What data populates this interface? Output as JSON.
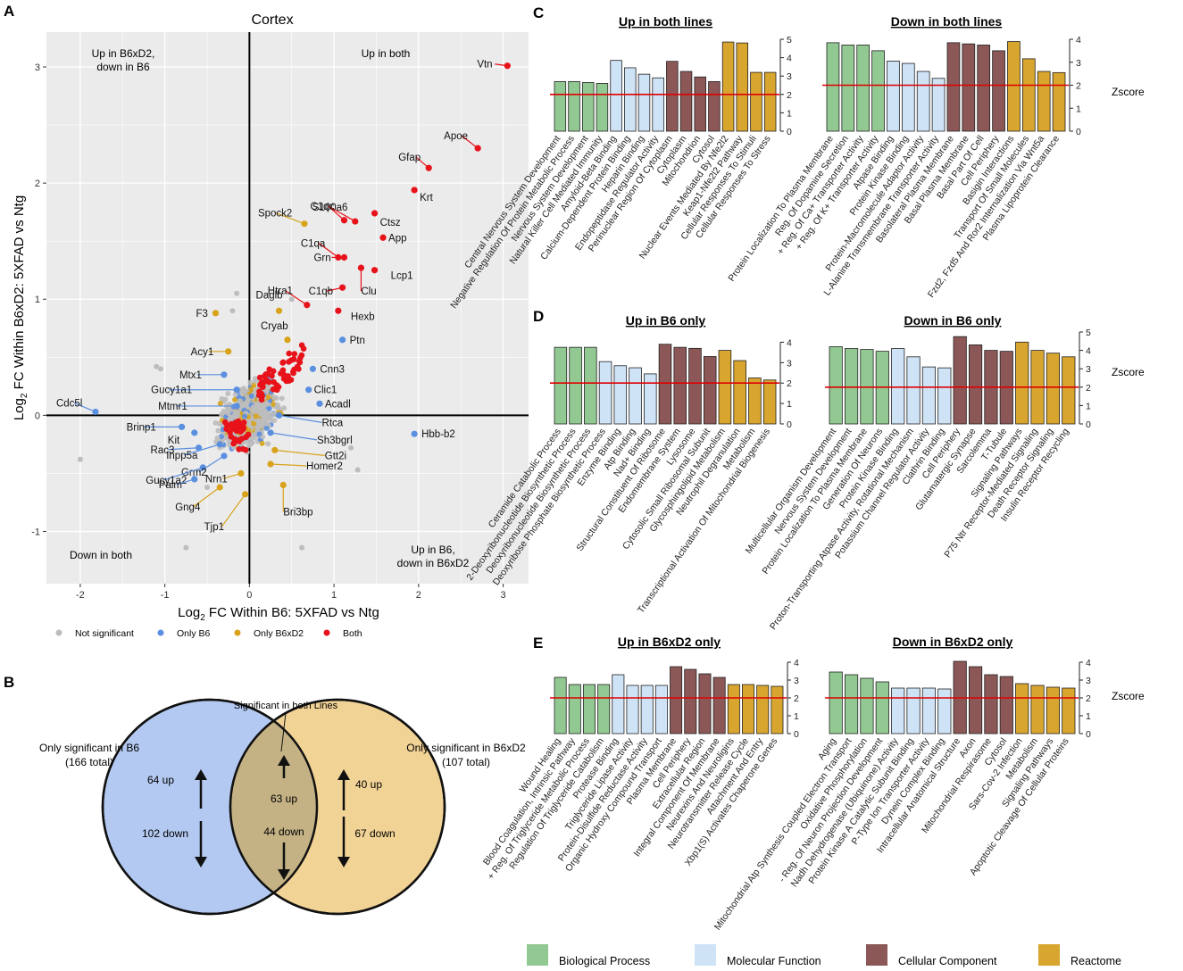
{
  "colors": {
    "not_significant": "#bdbdbd",
    "only_b6": "#5b8fe0",
    "only_b6xd2": "#d8a31a",
    "both": "#e8121a",
    "panel_bg": "#ebebeb",
    "bp": "#92c992",
    "mf": "#cfe3f7",
    "cc": "#8b5757",
    "re": "#d8a52e",
    "threshold": "#e00000",
    "venn_b6": "#b3c9f1",
    "venn_b6xd2": "#f2d396",
    "venn_overlap": "#c4b285"
  },
  "panels": {
    "a": "A",
    "b": "B",
    "c": "C",
    "d": "D",
    "e": "E"
  },
  "chart_data": [
    {
      "type": "scatter",
      "title": "Cortex",
      "xlabel_prefix": "Log",
      "xlabel_sub": "2",
      "xlabel_rest": " FC Within B6: 5XFAD vs Ntg",
      "ylabel_prefix": "Log",
      "ylabel_sub": "2",
      "ylabel_rest": " FC Within B6xD2: 5XFAD vs Ntg",
      "xlim": [
        -2.4,
        3.3
      ],
      "ylim": [
        -1.45,
        3.3
      ],
      "xticks": [
        -2,
        -1,
        0,
        1,
        2,
        3
      ],
      "yticks": [
        -1,
        0,
        1,
        2,
        3
      ],
      "quadrants": {
        "top_left": [
          "Up in B6xD2,",
          "down in B6"
        ],
        "top_right": [
          "Up in both"
        ],
        "bottom_left": [
          "Down in both"
        ],
        "bottom_right": [
          "Up in B6,",
          "down in B6xD2"
        ]
      },
      "legend": [
        {
          "key": "not_significant",
          "label": "Not significant"
        },
        {
          "key": "only_b6",
          "label": "Only B6"
        },
        {
          "key": "only_b6xd2",
          "label": "Only B6xD2"
        },
        {
          "key": "both",
          "label": "Both"
        }
      ],
      "labeled_points": [
        {
          "gene": "Vtn",
          "x": 3.05,
          "y": 3.01,
          "group": "both"
        },
        {
          "gene": "Apoe",
          "x": 2.7,
          "y": 2.3,
          "group": "both"
        },
        {
          "gene": "Gfap",
          "x": 2.12,
          "y": 2.13,
          "group": "both"
        },
        {
          "gene": "Krt",
          "x": 1.95,
          "y": 1.94,
          "group": "both"
        },
        {
          "gene": "S100a6",
          "x": 1.25,
          "y": 1.67,
          "group": "both"
        },
        {
          "gene": "Ctsz",
          "x": 1.48,
          "y": 1.74,
          "group": "both"
        },
        {
          "gene": "C1qc",
          "x": 1.12,
          "y": 1.68,
          "group": "both"
        },
        {
          "gene": "Spock2",
          "x": 0.65,
          "y": 1.65,
          "group": "only_b6xd2"
        },
        {
          "gene": "C1qa",
          "x": 1.05,
          "y": 1.36,
          "group": "both"
        },
        {
          "gene": "App",
          "x": 1.58,
          "y": 1.53,
          "group": "both"
        },
        {
          "gene": "Grn",
          "x": 1.12,
          "y": 1.36,
          "group": "both"
        },
        {
          "gene": "Lcp1",
          "x": 1.48,
          "y": 1.25,
          "group": "both"
        },
        {
          "gene": "C1qb",
          "x": 1.1,
          "y": 1.1,
          "group": "both"
        },
        {
          "gene": "Clu",
          "x": 1.32,
          "y": 1.27,
          "group": "both"
        },
        {
          "gene": "Htra1",
          "x": 0.68,
          "y": 0.95,
          "group": "both"
        },
        {
          "gene": "Daglb",
          "x": 0.35,
          "y": 0.9,
          "group": "only_b6xd2"
        },
        {
          "gene": "F3",
          "x": -0.4,
          "y": 0.88,
          "group": "only_b6xd2"
        },
        {
          "gene": "Hexb",
          "x": 1.05,
          "y": 0.9,
          "group": "both"
        },
        {
          "gene": "Cryab",
          "x": 0.45,
          "y": 0.65,
          "group": "only_b6xd2"
        },
        {
          "gene": "Ptn",
          "x": 1.1,
          "y": 0.65,
          "group": "only_b6"
        },
        {
          "gene": "Acy1",
          "x": -0.25,
          "y": 0.55,
          "group": "only_b6xd2"
        },
        {
          "gene": "Mtx1",
          "x": -0.3,
          "y": 0.35,
          "group": "only_b6"
        },
        {
          "gene": "Cnn3",
          "x": 0.75,
          "y": 0.4,
          "group": "only_b6"
        },
        {
          "gene": "Gucy1a1",
          "x": -0.15,
          "y": 0.22,
          "group": "only_b6"
        },
        {
          "gene": "Clic1",
          "x": 0.7,
          "y": 0.22,
          "group": "only_b6"
        },
        {
          "gene": "Acadl",
          "x": 0.83,
          "y": 0.1,
          "group": "only_b6"
        },
        {
          "gene": "Mtmr1",
          "x": -0.15,
          "y": 0.08,
          "group": "only_b6"
        },
        {
          "gene": "Cdc5l",
          "x": -1.82,
          "y": 0.03,
          "group": "only_b6"
        },
        {
          "gene": "Rtca",
          "x": 0.35,
          "y": 0.0,
          "group": "only_b6"
        },
        {
          "gene": "Brinp1",
          "x": -0.8,
          "y": -0.1,
          "group": "only_b6"
        },
        {
          "gene": "Kit",
          "x": -0.65,
          "y": -0.15,
          "group": "only_b6"
        },
        {
          "gene": "Sh3bgrl",
          "x": 0.25,
          "y": -0.15,
          "group": "only_b6"
        },
        {
          "gene": "Hbb-b2",
          "x": 1.95,
          "y": -0.16,
          "group": "only_b6"
        },
        {
          "gene": "Rac3",
          "x": -0.6,
          "y": -0.28,
          "group": "only_b6"
        },
        {
          "gene": "Inpp5a",
          "x": -0.35,
          "y": -0.25,
          "group": "only_b6"
        },
        {
          "gene": "Gtt2i",
          "x": 0.3,
          "y": -0.3,
          "group": "only_b6xd2"
        },
        {
          "gene": "Grm2",
          "x": -0.3,
          "y": -0.35,
          "group": "only_b6"
        },
        {
          "gene": "Homer2",
          "x": 0.25,
          "y": -0.42,
          "group": "only_b6xd2"
        },
        {
          "gene": "Gucy1a2",
          "x": -0.55,
          "y": -0.45,
          "group": "only_b6"
        },
        {
          "gene": "Palm",
          "x": -0.65,
          "y": -0.55,
          "group": "only_b6"
        },
        {
          "gene": "Nrn1",
          "x": -0.1,
          "y": -0.5,
          "group": "only_b6xd2"
        },
        {
          "gene": "Bri3bp",
          "x": 0.4,
          "y": -0.6,
          "group": "only_b6xd2"
        },
        {
          "gene": "Gng4",
          "x": -0.35,
          "y": -0.62,
          "group": "only_b6xd2"
        },
        {
          "gene": "Tjp1",
          "x": -0.05,
          "y": -0.68,
          "group": "only_b6xd2"
        }
      ]
    },
    {
      "type": "venn",
      "annotation": "Significant in both Lines",
      "left": {
        "title": "Only significant in B6",
        "total": "(166 total)",
        "up": "64 up",
        "down": "102 down"
      },
      "overlap": {
        "up": "63 up",
        "down": "44 down"
      },
      "right": {
        "title": "Only significant in B6xD2",
        "total": "(107 total)",
        "up": "40 up",
        "down": "67 down"
      }
    },
    {
      "type": "bar",
      "panel": "C",
      "ylabel": "Zscore",
      "threshold": 2,
      "charts": [
        {
          "title": "Up in both lines",
          "ymax": 5,
          "ticks": [
            0,
            1,
            2,
            3,
            4,
            5
          ],
          "values": [
            2.7,
            2.7,
            2.65,
            2.6,
            3.85,
            3.45,
            3.1,
            2.9,
            3.8,
            3.25,
            2.95,
            2.7,
            4.85,
            4.8,
            3.2,
            3.2
          ],
          "categories": [
            "bp",
            "bp",
            "bp",
            "bp",
            "mf",
            "mf",
            "mf",
            "mf",
            "cc",
            "cc",
            "cc",
            "cc",
            "re",
            "re",
            "re",
            "re"
          ],
          "labels": [
            "Central Nervous System Development",
            "Negative Regulation Of Protein Metabolic Process",
            "Nervous System Development",
            "Natural Killer Cell Mediated Immunity",
            "Amyloid-Beta Binding",
            "Calcium-Dependent Protein Binding",
            "Heparin Binding",
            "Endopeptidase Regulator Activity",
            "Perinuclear Region Of Cytoplasm",
            "Cytoplasm",
            "Mitochondrion",
            "Cytosol",
            "Nuclear Events Mediated By Nfe2l2",
            "Keap1-Nfe2l2 Pathway",
            "Cellular Responses To Stimuli",
            "Cellular Responses To Stress"
          ]
        },
        {
          "title": "Down in both lines",
          "ymax": 4,
          "ticks": [
            0,
            1,
            2,
            3,
            4
          ],
          "values": [
            3.85,
            3.75,
            3.75,
            3.5,
            3.05,
            2.95,
            2.6,
            2.3,
            3.85,
            3.8,
            3.75,
            3.5,
            3.9,
            3.15,
            2.6,
            2.55
          ],
          "categories": [
            "bp",
            "bp",
            "bp",
            "bp",
            "mf",
            "mf",
            "mf",
            "mf",
            "cc",
            "cc",
            "cc",
            "cc",
            "re",
            "re",
            "re",
            "re"
          ],
          "labels": [
            "Protein Localization To Plasma Membrane",
            "Reg. Of Dopamine Secretion",
            "+ Reg. Of Ca+ Transporter Activity",
            "+ Reg. Of K+ Transporter Activity",
            "Atpase Binding",
            "Protein Kinase Binding",
            "Protein-Macromolecule Adaptor Activity",
            "L-Alanine Transmembrane Transporter Activity",
            "Basolateral Plasma Membrane",
            "Basal Plasma Membrane",
            "Basal Part Of Cell",
            "Cell Periphery",
            "Basigin Interactions",
            "Transport Of Small Molecules",
            "Fzd2, Fzd5 And Ror2 Internalization Via Wnt5a",
            "Plasma Lipoprotein Clearance"
          ]
        }
      ]
    },
    {
      "type": "bar",
      "panel": "D",
      "ylabel": "Zscore",
      "threshold": 2,
      "charts": [
        {
          "title": "Up in B6 only",
          "ymax": 4.5,
          "ticks": [
            0,
            1,
            2,
            3,
            4
          ],
          "values": [
            3.75,
            3.75,
            3.75,
            3.05,
            2.85,
            2.75,
            2.45,
            3.9,
            3.75,
            3.7,
            3.3,
            3.6,
            3.1,
            2.25,
            2.15
          ],
          "categories": [
            "bp",
            "bp",
            "bp",
            "mf",
            "mf",
            "mf",
            "mf",
            "cc",
            "cc",
            "cc",
            "cc",
            "re",
            "re",
            "re",
            "re"
          ],
          "labels": [
            "Ceramide Catabolic Process",
            "2-Deoxyribonucleotide Biosynthetic Process",
            "Deoxyribonucleotide Biosynthetic Process",
            "Deoxyribose Phosphate Biosynthetic Process",
            "Enzyme Binding",
            "Atp Binding",
            "Nad+ Binding",
            "Structural Constituent Of Ribosome",
            "Endomembrane System",
            "Lysosome",
            "Cytosolic Small Ribosomal Subunit",
            "Glycosphingolipid Metabolism",
            "Neutrophil Degranulation",
            "Metabolism",
            "Transcriptional Activation Of Mitochondrial Biogenesis"
          ]
        },
        {
          "title": "Down in B6 only",
          "ymax": 5,
          "ticks": [
            0,
            1,
            2,
            3,
            4,
            5
          ],
          "values": [
            4.2,
            4.1,
            4.05,
            3.95,
            4.1,
            3.65,
            3.1,
            3.05,
            4.75,
            4.3,
            4.0,
            3.95,
            4.45,
            4.0,
            3.85,
            3.65
          ],
          "categories": [
            "bp",
            "bp",
            "bp",
            "bp",
            "mf",
            "mf",
            "mf",
            "mf",
            "cc",
            "cc",
            "cc",
            "cc",
            "re",
            "re",
            "re",
            "re"
          ],
          "labels": [
            "Multicellular Organism Development",
            "Nervous System Development",
            "Protein Localization To Plasma Membrane",
            "Generation Of Neurons",
            "Protein Kinase Binding",
            "Proton-Transporting Atpase Activity, Rotational Mechanism",
            "Potassium Channel Regulator Activity",
            "Clathrin Binding",
            "Cell Periphery",
            "Glutamatergic Synapse",
            "Sarcolemma",
            "T-Tubule",
            "Signaling Pathways",
            "P75 Ntr Receptor-Mediated Signaling",
            "Death Receptor Signaling",
            "Insulin Receptor Recycling"
          ]
        }
      ]
    },
    {
      "type": "bar",
      "panel": "E",
      "ylabel": "Zscore",
      "threshold": 2,
      "charts": [
        {
          "title": "Up in B6xD2 only",
          "ymax": 4,
          "ticks": [
            0,
            1,
            2,
            3,
            4
          ],
          "values": [
            3.15,
            2.75,
            2.75,
            2.75,
            3.3,
            2.7,
            2.7,
            2.7,
            3.75,
            3.6,
            3.35,
            3.15,
            2.75,
            2.75,
            2.7,
            2.65
          ],
          "categories": [
            "bp",
            "bp",
            "bp",
            "bp",
            "mf",
            "mf",
            "mf",
            "mf",
            "cc",
            "cc",
            "cc",
            "cc",
            "re",
            "re",
            "re",
            "re"
          ],
          "labels": [
            "Wound Healing",
            "Blood Coagulation, Intrinsic Pathway",
            "+ Reg. Of Triglyceride Metabolic Process",
            "Regulation Of Triglyceride Catabolism",
            "Protease Binding",
            "Triglyceride Lipase Activity",
            "Protein-Disulfide Reductase Activity",
            "Organic Hydroxy Compound Transport",
            "Plasma Membrane",
            "Cell Periphery",
            "Extracellular Region",
            "Integral Component Of Membrane",
            "Neurexins And Neuroligins",
            "Neurotransmitter Release Cycle",
            "Attachment And Entry",
            "Xbp1(S) Activates Chaperone Genes"
          ]
        },
        {
          "title": "Down in B6xD2 only",
          "ymax": 4,
          "ticks": [
            0,
            1,
            2,
            3,
            4
          ],
          "values": [
            3.45,
            3.3,
            3.1,
            2.9,
            2.55,
            2.55,
            2.55,
            2.5,
            4.05,
            3.75,
            3.3,
            3.2,
            2.8,
            2.7,
            2.6,
            2.55
          ],
          "categories": [
            "bp",
            "bp",
            "bp",
            "bp",
            "mf",
            "mf",
            "mf",
            "mf",
            "cc",
            "cc",
            "cc",
            "cc",
            "re",
            "re",
            "re",
            "re"
          ],
          "labels": [
            "Aging",
            "Mitochondrial Atp Synthesis Coupled Electron Transport",
            "Oxidative Phosphorylation",
            "- Reg. Of Neuron Projection Development",
            "Nadh Dehydrogenase (Ubiquinone) Activity",
            "Protein Kinase A Catalytic Subunit Binding",
            "P-Type Ion Transporter Activity",
            "Dynein Complex Binding",
            "Intracellular Anatomical Structure",
            "Axon",
            "Mitochondrial Respirasome",
            "Cytosol",
            "Sars-Cov-2 Infection",
            "Metabolism",
            "Signaling Pathways",
            "Apoptotic Cleavage Of Cellular Proteins"
          ]
        }
      ]
    }
  ],
  "category_legend": [
    {
      "key": "bp",
      "label": "Biological Process"
    },
    {
      "key": "mf",
      "label": "Molecular Function"
    },
    {
      "key": "cc",
      "label": "Cellular Component"
    },
    {
      "key": "re",
      "label": "Reactome"
    }
  ]
}
